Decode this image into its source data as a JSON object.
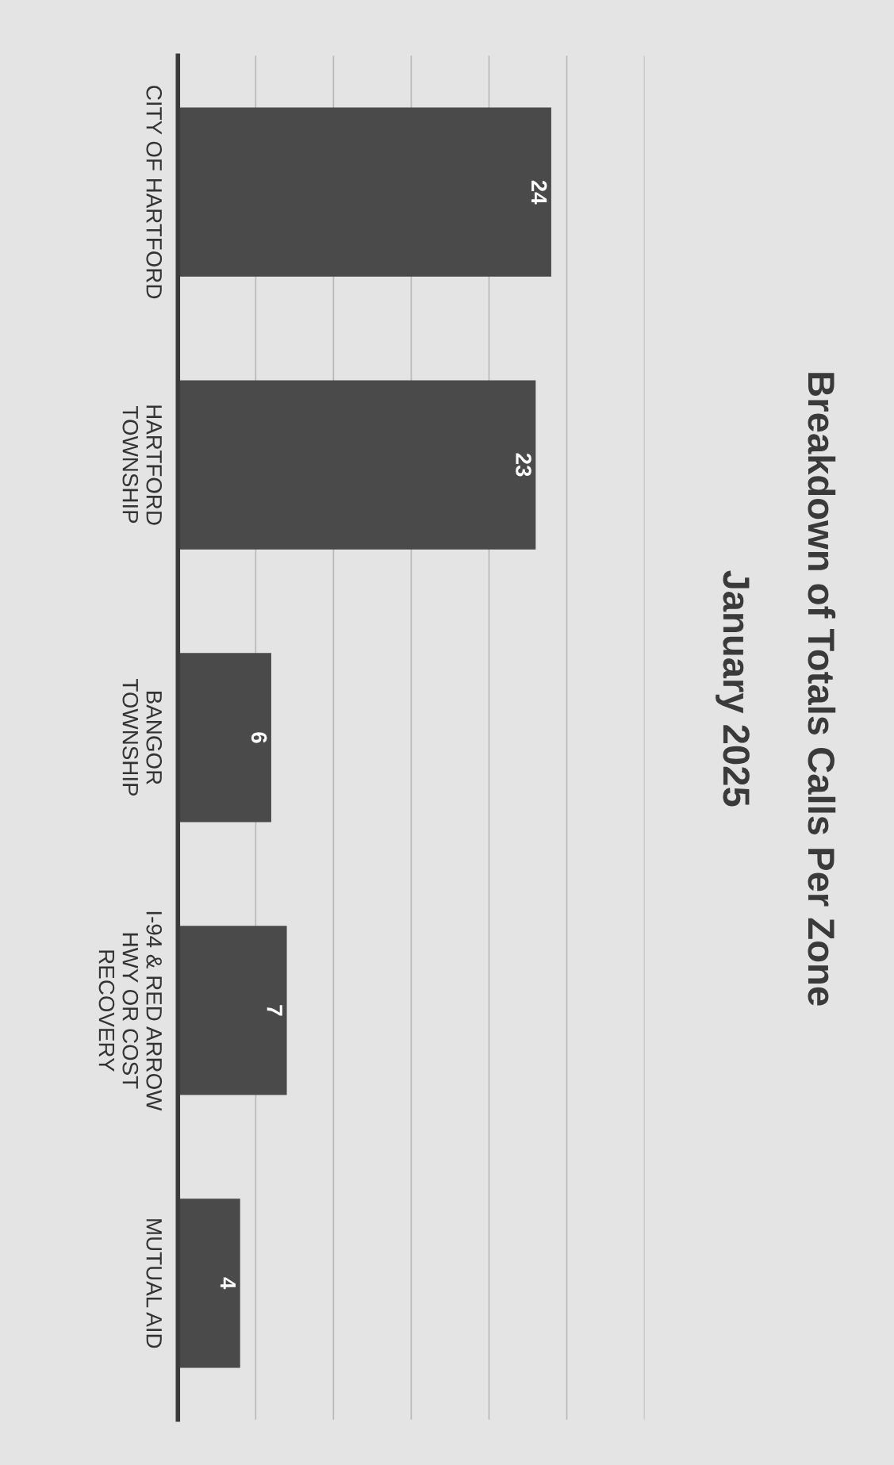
{
  "chart_data": {
    "type": "bar",
    "orientation": "horizontal",
    "title": "Breakdown of Totals Calls Per Zone",
    "subtitle": "January 2025",
    "categories": [
      "CITY OF HARTFORD",
      "HARTFORD\nTOWNSHIP",
      "BANGOR\nTOWNSHIP",
      "I-94 & RED ARROW\nHWY OR COST\nRECOVERY",
      "MUTUAL AID"
    ],
    "values": [
      24,
      23,
      6,
      7,
      4
    ],
    "color": "#4a4a4a",
    "data_labels": true,
    "xlim": [
      0,
      30
    ],
    "xticks": [
      {
        "value": 5,
        "label": null
      },
      {
        "value": 10,
        "label": null
      },
      {
        "value": 15,
        "label": null
      },
      {
        "value": 20,
        "label": null
      },
      {
        "value": 25,
        "label": null
      },
      {
        "value": 30,
        "label": null
      }
    ],
    "grid": "x",
    "tick_labels": "y"
  }
}
